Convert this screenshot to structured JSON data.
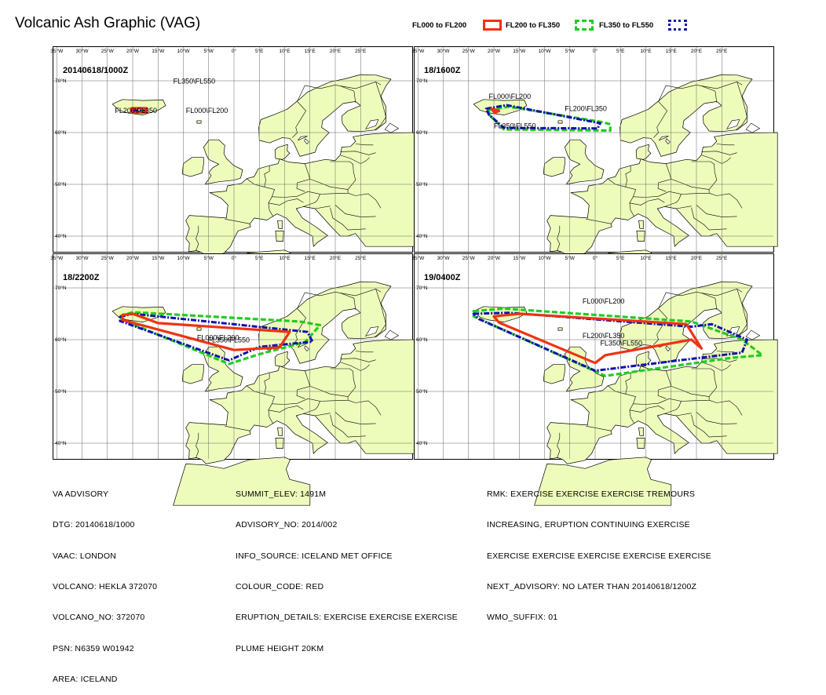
{
  "title": "Volcanic Ash Graphic (VAG)",
  "legend": [
    {
      "label": "FL000 to FL200",
      "color": "#ee3311",
      "style": "solid"
    },
    {
      "label": "FL200 to FL350",
      "color": "#22cc22",
      "style": "dashed"
    },
    {
      "label": "FL350 to FL550",
      "color": "#1111aa",
      "style": "dashdot"
    }
  ],
  "axes": {
    "lon_ticks": [
      "35°W",
      "30°W",
      "25°W",
      "20°W",
      "15°W",
      "10°W",
      "5°W",
      "0°",
      "5°E",
      "10°E",
      "15°E",
      "20°E",
      "25°E"
    ],
    "lat_ticks": [
      "70°N",
      "60°N",
      "50°N",
      "40°N"
    ]
  },
  "panels": [
    {
      "time": "20140618/1000Z",
      "labels": [
        {
          "text": "FL350\\FL550",
          "lon": -12,
          "lat": 69.5
        },
        {
          "text": "FL200\\FL350",
          "lon": -23.5,
          "lat": 63.8
        },
        {
          "text": "FL000\\FL200",
          "lon": -9.5,
          "lat": 63.8
        }
      ],
      "polygons": {
        "fl000_fl200": [
          [
            -20.2,
            64.7
          ],
          [
            -17.3,
            64.7
          ],
          [
            -17.3,
            63.9
          ],
          [
            -20.2,
            63.9
          ]
        ],
        "fl200_fl350": [
          [
            -20,
            64.3
          ],
          [
            -17.5,
            64.3
          ],
          [
            -17.5,
            63.9
          ],
          [
            -20,
            63.9
          ]
        ],
        "fl350_fl550": [
          [
            -20,
            64.2
          ],
          [
            -17.7,
            64.2
          ],
          [
            -17.7,
            63.95
          ],
          [
            -20,
            63.95
          ]
        ]
      }
    },
    {
      "time": "18/1600Z",
      "labels": [
        {
          "text": "FL000\\FL200",
          "lon": -21,
          "lat": 66.5
        },
        {
          "text": "FL200\\FL350",
          "lon": -6,
          "lat": 64.2
        },
        {
          "text": "FL350\\FL550",
          "lon": -20,
          "lat": 60.8
        }
      ],
      "polygons": {
        "fl000_fl200": [
          [
            -20.5,
            64.6
          ],
          [
            -19.8,
            63.8
          ],
          [
            -19.0,
            64.2
          ]
        ],
        "fl200_fl350": [
          [
            -21,
            64.4
          ],
          [
            -17,
            65.0
          ],
          [
            1.5,
            62.0
          ],
          [
            3.0,
            61.6
          ],
          [
            3.0,
            60.4
          ],
          [
            -18,
            60.6
          ],
          [
            -21,
            63.5
          ]
        ],
        "fl350_fl550": [
          [
            -21.5,
            64.6
          ],
          [
            -17.5,
            65.3
          ],
          [
            1.0,
            61.8
          ],
          [
            0.5,
            60.8
          ],
          [
            -18,
            60.9
          ],
          [
            -21,
            63.5
          ]
        ]
      }
    },
    {
      "time": "18/2200Z",
      "labels": [
        {
          "text": "FL000\\FL200",
          "lon": -7.3,
          "lat": 59.9
        },
        {
          "text": "FL350\\FL550",
          "lon": -5.2,
          "lat": 59.5
        }
      ],
      "polygons": {
        "fl000_fl200": [
          [
            -22,
            64.8
          ],
          [
            -20,
            65.0
          ],
          [
            -15,
            63.2
          ],
          [
            11,
            61.5
          ],
          [
            9,
            58.5
          ],
          [
            0,
            58.0
          ],
          [
            -22,
            63.8
          ]
        ],
        "fl200_fl350": [
          [
            -22.5,
            64.5
          ],
          [
            -20,
            65.3
          ],
          [
            13,
            63.5
          ],
          [
            17,
            62.8
          ],
          [
            14,
            59.5
          ],
          [
            5,
            57.2
          ],
          [
            -1,
            55.3
          ],
          [
            -22,
            63.8
          ]
        ],
        "fl350_fl550": [
          [
            -22.5,
            64.4
          ],
          [
            -20,
            65.0
          ],
          [
            14.5,
            61.5
          ],
          [
            15.5,
            59.6
          ],
          [
            5,
            58.6
          ],
          [
            -1,
            56.0
          ],
          [
            -22.5,
            63.6
          ]
        ]
      }
    },
    {
      "time": "19/0400Z",
      "labels": [
        {
          "text": "FL000\\FL200",
          "lon": -2.5,
          "lat": 67.0
        },
        {
          "text": "FL200\\FL350",
          "lon": -2.5,
          "lat": 60.3
        },
        {
          "text": "FL350\\FL550",
          "lon": 1,
          "lat": 58.9
        }
      ],
      "polygons": {
        "fl000_fl200": [
          [
            -20,
            64.5
          ],
          [
            -15,
            65.0
          ],
          [
            18,
            63.0
          ],
          [
            21,
            58.3
          ],
          [
            19,
            60.0
          ],
          [
            2,
            57.0
          ],
          [
            0,
            55.5
          ],
          [
            -19,
            63.3
          ]
        ],
        "fl200_fl350": [
          [
            -24,
            65.5
          ],
          [
            -18,
            66.0
          ],
          [
            19,
            63.5
          ],
          [
            29,
            60.0
          ],
          [
            33,
            57.0
          ],
          [
            27,
            56.5
          ],
          [
            2,
            53.0
          ],
          [
            -24,
            64.5
          ]
        ],
        "fl350_fl550": [
          [
            -24,
            65.0
          ],
          [
            -17,
            65.2
          ],
          [
            19,
            62.5
          ],
          [
            23,
            63.0
          ],
          [
            30,
            60.0
          ],
          [
            29,
            57.5
          ],
          [
            0,
            54.0
          ],
          [
            -23,
            64.0
          ]
        ]
      }
    }
  ],
  "advisory": {
    "col1": [
      "VA ADVISORY",
      "DTG: 20140618/1000",
      "VAAC: LONDON",
      "VOLCANO: HEKLA 372070",
      "VOLCANO_NO: 372070",
      "PSN: N6359 W01942",
      "AREA: ICELAND"
    ],
    "col2": [
      "SUMMIT_ELEV: 1491M",
      "ADVISORY_NO: 2014/002",
      "INFO_SOURCE: ICELAND MET OFFICE",
      "COLOUR_CODE: RED",
      "ERUPTION_DETAILS: EXERCISE EXERCISE EXERCISE",
      "PLUME HEIGHT 20KM"
    ],
    "col3": [
      "RMK: EXERCISE EXERCISE EXERCISE TREMOURS",
      "INCREASING, ERUPTION CONTINUING EXERCISE",
      "EXERCISE EXERCISE EXERCISE EXERCISE EXERCISE",
      "NEXT_ADVISORY: NO LATER THAN 20140618/1200Z",
      "WMO_SUFFIX: 01"
    ]
  }
}
